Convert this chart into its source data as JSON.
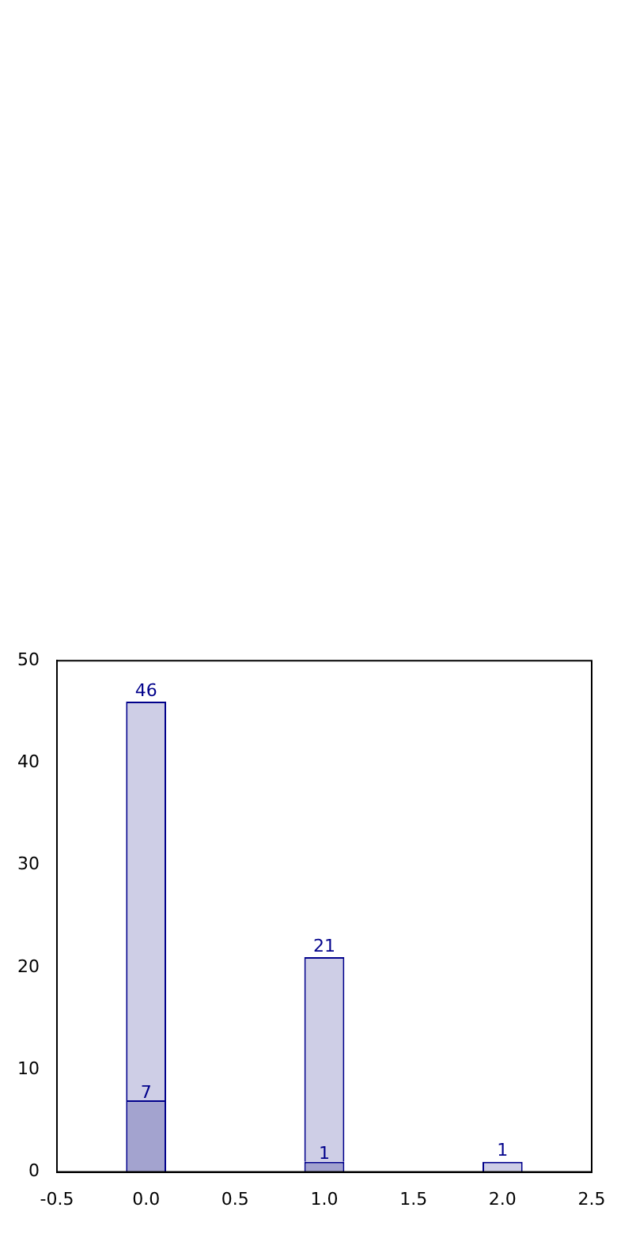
{
  "chart_data": {
    "type": "bar",
    "x": [
      0,
      1,
      2
    ],
    "stacked": true,
    "series": [
      {
        "color": "#a3a3cf",
        "values": [
          7,
          1,
          null
        ],
        "value_labels": [
          "7",
          "1",
          null
        ]
      },
      {
        "color": "#cecee6",
        "values": [
          39,
          20,
          1
        ]
      }
    ],
    "totals": [
      "46",
      "21",
      "1"
    ],
    "xlim": [
      -0.5,
      2.5
    ],
    "xticks": [
      -0.5,
      {
        "value": 0,
        "label": "0.0"
      },
      0.5,
      {
        "value": 1,
        "label": "1.0"
      },
      1.5,
      {
        "value": 2,
        "label": "2.0"
      },
      2.5
    ],
    "ylim": [
      0,
      50
    ],
    "yticks": [
      0,
      10,
      20,
      30,
      40,
      50
    ]
  }
}
